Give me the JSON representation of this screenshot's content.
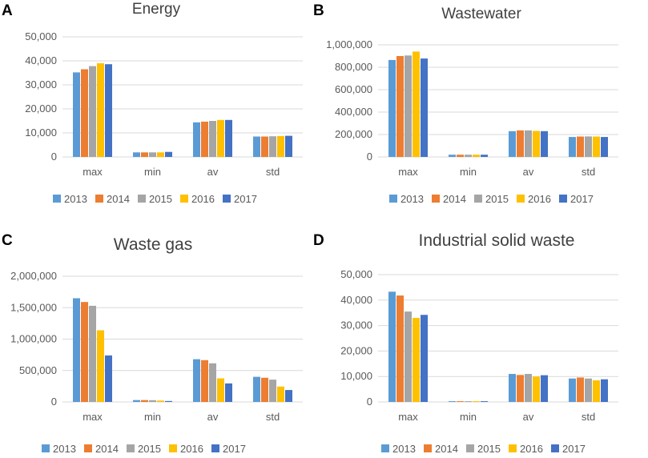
{
  "colors": {
    "series": [
      "#5B9BD5",
      "#ED7D31",
      "#A5A5A5",
      "#FFC000",
      "#4472C4"
    ],
    "grid": "#D9D9D9",
    "text": "#595959",
    "title": "#404040"
  },
  "chart_data": [
    {
      "panel": "A",
      "type": "bar",
      "title": "Energy",
      "categories": [
        "max",
        "min",
        "av",
        "std"
      ],
      "yticks": [
        "0",
        "10,000",
        "20,000",
        "30,000",
        "40,000",
        "50,000"
      ],
      "ylim": [
        0,
        50000
      ],
      "grid": true,
      "legend": "bottom",
      "series": [
        {
          "name": "2013",
          "values": [
            35200,
            1900,
            14400,
            8500
          ]
        },
        {
          "name": "2014",
          "values": [
            36500,
            1900,
            14700,
            8500
          ]
        },
        {
          "name": "2015",
          "values": [
            37800,
            1900,
            15000,
            8600
          ]
        },
        {
          "name": "2016",
          "values": [
            39000,
            1900,
            15400,
            8700
          ]
        },
        {
          "name": "2017",
          "values": [
            38600,
            2100,
            15400,
            8800
          ]
        }
      ]
    },
    {
      "panel": "B",
      "type": "bar",
      "title": "Wastewater",
      "categories": [
        "max",
        "min",
        "av",
        "std"
      ],
      "yticks": [
        "0",
        "200,000",
        "400,000",
        "600,000",
        "800,000",
        "1,000,000"
      ],
      "ylim": [
        0,
        1000000
      ],
      "grid": true,
      "legend": "bottom",
      "series": [
        {
          "name": "2013",
          "values": [
            865000,
            20000,
            230000,
            178000
          ]
        },
        {
          "name": "2014",
          "values": [
            900000,
            20000,
            237000,
            182000
          ]
        },
        {
          "name": "2015",
          "values": [
            905000,
            20000,
            237000,
            183000
          ]
        },
        {
          "name": "2016",
          "values": [
            940000,
            20000,
            232000,
            182000
          ]
        },
        {
          "name": "2017",
          "values": [
            878000,
            20000,
            230000,
            178000
          ]
        }
      ]
    },
    {
      "panel": "C",
      "type": "bar",
      "title": "Waste gas",
      "categories": [
        "max",
        "min",
        "av",
        "std"
      ],
      "yticks": [
        "0",
        "500,000",
        "1,000,000",
        "1,500,000",
        "2,000,000"
      ],
      "ylim": [
        0,
        2000000
      ],
      "grid": true,
      "legend": "bottom",
      "series": [
        {
          "name": "2013",
          "values": [
            1650000,
            30000,
            680000,
            400000
          ]
        },
        {
          "name": "2014",
          "values": [
            1590000,
            30000,
            665000,
            385000
          ]
        },
        {
          "name": "2015",
          "values": [
            1530000,
            28000,
            615000,
            355000
          ]
        },
        {
          "name": "2016",
          "values": [
            1140000,
            22000,
            375000,
            245000
          ]
        },
        {
          "name": "2017",
          "values": [
            740000,
            15000,
            295000,
            190000
          ]
        }
      ]
    },
    {
      "panel": "D",
      "type": "bar",
      "title": "Industrial solid waste",
      "categories": [
        "max",
        "min",
        "av",
        "std"
      ],
      "yticks": [
        "0",
        "10,000",
        "20,000",
        "30,000",
        "40,000",
        "50,000"
      ],
      "ylim": [
        0,
        50000
      ],
      "grid": true,
      "legend": "bottom",
      "series": [
        {
          "name": "2013",
          "values": [
            43300,
            300,
            11000,
            9200
          ]
        },
        {
          "name": "2014",
          "values": [
            41800,
            300,
            10600,
            9600
          ]
        },
        {
          "name": "2015",
          "values": [
            35500,
            300,
            11000,
            9200
          ]
        },
        {
          "name": "2016",
          "values": [
            33000,
            300,
            10000,
            8500
          ]
        },
        {
          "name": "2017",
          "values": [
            34200,
            300,
            10500,
            8900
          ]
        }
      ]
    }
  ]
}
